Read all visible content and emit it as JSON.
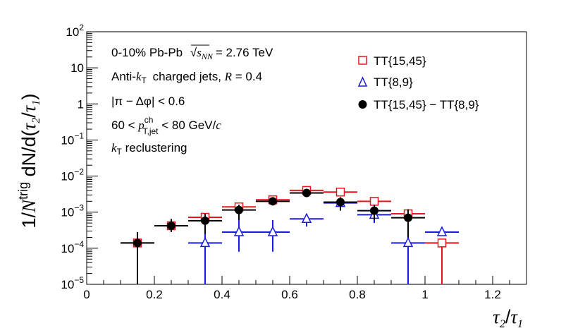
{
  "chart_data": {
    "type": "scatter",
    "yscale": "log",
    "xlim": [
      0,
      1.3
    ],
    "ylim": [
      1e-05,
      100
    ],
    "xlabel": "τ2/τ1",
    "ylabel": "1/N^trig dN/d(τ2/τ1)",
    "xticks": [
      "0",
      "0.2",
      "0.4",
      "0.6",
      "0.8",
      "1",
      "1.2"
    ],
    "yticks": [
      {
        "base": "10",
        "exp": "−5"
      },
      {
        "base": "10",
        "exp": "−4"
      },
      {
        "base": "10",
        "exp": "−3"
      },
      {
        "base": "10",
        "exp": "−2"
      },
      {
        "base": "10",
        "exp": "−1"
      },
      {
        "base": "1",
        "exp": ""
      },
      {
        "base": "10",
        "exp": ""
      },
      {
        "base": "10",
        "exp": "2"
      }
    ],
    "annotations": {
      "line1": "0-10% Pb-Pb",
      "line1_sqrt": "s",
      "line1_sub": "NN",
      "line1_val": "= 2.76 TeV",
      "line2_a": "Anti-",
      "line2_k": "k",
      "line2_ksub": "T",
      "line2_b": " charged jets, ",
      "line2_R": "R",
      "line2_c": " = 0.4",
      "line3": "|π − Δφ| < 0.6",
      "line4_a": "60 < ",
      "line4_p": "p",
      "line4_sup": "ch",
      "line4_sub": "T,jet",
      "line4_b": " < 80 GeV/",
      "line4_c": "c",
      "line5_k": "k",
      "line5_sub": "T",
      "line5_b": " reclustering"
    },
    "series": [
      {
        "name": "TT{15,45}",
        "color": "#e8141e",
        "marker": "open-square",
        "points": [
          {
            "x": 0.15,
            "y": 0.00014,
            "xerr": 0.05,
            "ylo": 0.00014,
            "yhi": 0.00014
          },
          {
            "x": 0.25,
            "y": 0.00042,
            "xerr": 0.05,
            "ylo": 0.00042,
            "yhi": 0.00042
          },
          {
            "x": 0.35,
            "y": 0.00072,
            "xerr": 0.05,
            "ylo": 0.00072,
            "yhi": 0.00072
          },
          {
            "x": 0.45,
            "y": 0.0014,
            "xerr": 0.05,
            "ylo": 0.0014,
            "yhi": 0.0014
          },
          {
            "x": 0.55,
            "y": 0.0022,
            "xerr": 0.05,
            "ylo": 0.0022,
            "yhi": 0.0022
          },
          {
            "x": 0.65,
            "y": 0.004,
            "xerr": 0.05,
            "ylo": 0.004,
            "yhi": 0.004
          },
          {
            "x": 0.75,
            "y": 0.0036,
            "xerr": 0.05,
            "ylo": 0.0036,
            "yhi": 0.0036
          },
          {
            "x": 0.85,
            "y": 0.002,
            "xerr": 0.05,
            "ylo": 0.002,
            "yhi": 0.002
          },
          {
            "x": 0.95,
            "y": 0.0009,
            "xerr": 0.05,
            "ylo": 0.0009,
            "yhi": 0.0009
          },
          {
            "x": 1.05,
            "y": 0.00014,
            "xerr": 0.05,
            "ylo": 1e-05,
            "yhi": 0.00014
          }
        ]
      },
      {
        "name": "TT{8,9}",
        "color": "#1a1ae0",
        "marker": "open-triangle",
        "points": [
          {
            "x": 0.35,
            "y": 0.00014,
            "xerr": 0.05,
            "ylo": 1e-05,
            "yhi": 0.0003
          },
          {
            "x": 0.45,
            "y": 0.00028,
            "xerr": 0.05,
            "ylo": 8e-05,
            "yhi": 0.0006
          },
          {
            "x": 0.55,
            "y": 0.00028,
            "xerr": 0.05,
            "ylo": 8e-05,
            "yhi": 0.0006
          },
          {
            "x": 0.65,
            "y": 0.00065,
            "xerr": 0.05,
            "ylo": 0.0004,
            "yhi": 0.0009
          },
          {
            "x": 0.75,
            "y": 0.0018,
            "xerr": 0.05,
            "ylo": 0.0013,
            "yhi": 0.0023
          },
          {
            "x": 0.85,
            "y": 0.00085,
            "xerr": 0.05,
            "ylo": 0.0005,
            "yhi": 0.0011
          },
          {
            "x": 0.95,
            "y": 0.00014,
            "xerr": 0.05,
            "ylo": 1e-05,
            "yhi": 0.0003
          },
          {
            "x": 1.05,
            "y": 0.00028,
            "xerr": 0.05,
            "ylo": 0.00028,
            "yhi": 0.00028
          }
        ]
      },
      {
        "name": "TT{15,45} − TT{8,9}",
        "color": "#000000",
        "marker": "filled-circle",
        "points": [
          {
            "x": 0.15,
            "y": 0.00014,
            "xerr": 0.05,
            "ylo": 1e-05,
            "yhi": 0.00028
          },
          {
            "x": 0.25,
            "y": 0.00042,
            "xerr": 0.05,
            "ylo": 0.00028,
            "yhi": 0.00065
          },
          {
            "x": 0.35,
            "y": 0.00058,
            "xerr": 0.05,
            "ylo": 0.00025,
            "yhi": 0.0009
          },
          {
            "x": 0.45,
            "y": 0.00115,
            "xerr": 0.05,
            "ylo": 0.0006,
            "yhi": 0.0016
          },
          {
            "x": 0.55,
            "y": 0.002,
            "xerr": 0.05,
            "ylo": 0.0016,
            "yhi": 0.0026
          },
          {
            "x": 0.65,
            "y": 0.0034,
            "xerr": 0.05,
            "ylo": 0.0029,
            "yhi": 0.0041
          },
          {
            "x": 0.75,
            "y": 0.0019,
            "xerr": 0.05,
            "ylo": 0.0011,
            "yhi": 0.0026
          },
          {
            "x": 0.85,
            "y": 0.0011,
            "xerr": 0.05,
            "ylo": 0.0006,
            "yhi": 0.0016
          },
          {
            "x": 0.95,
            "y": 0.0007,
            "xerr": 0.05,
            "ylo": 0.0002,
            "yhi": 0.0012
          }
        ]
      }
    ],
    "legend": {
      "placement": "top-right",
      "entries": [
        "TT{15,45}",
        "TT{8,9}",
        "TT{15,45} − TT{8,9}"
      ]
    }
  }
}
